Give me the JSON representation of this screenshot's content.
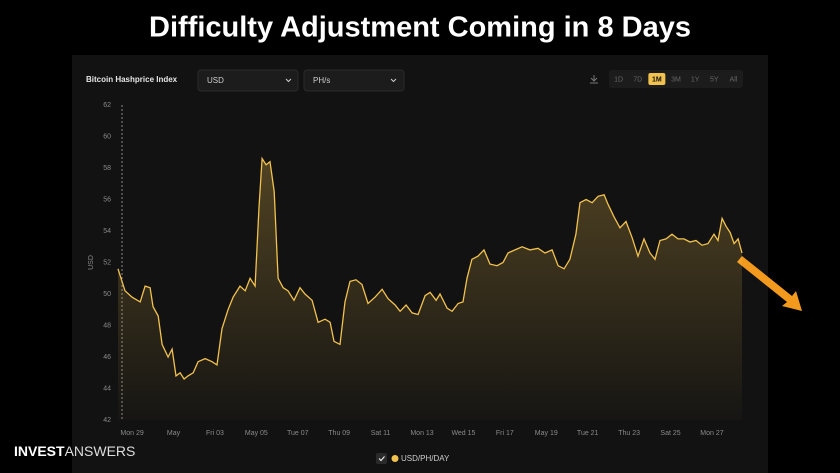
{
  "title": "Difficulty Adjustment Coming in 8 Days",
  "brand": {
    "bold": "INVEST",
    "light": "ANSWERS"
  },
  "controls": {
    "index_name": "Bitcoin Hashprice Index",
    "currency": "USD",
    "unit": "PH/s",
    "ranges": [
      "1D",
      "7D",
      "1M",
      "3M",
      "1Y",
      "5Y",
      "All"
    ],
    "active_range": "1M"
  },
  "chart_data": {
    "type": "area",
    "ylabel": "USD",
    "xlim": [
      -0.68,
      29.45
    ],
    "ylim": [
      42,
      62
    ],
    "yticks": [
      42,
      44,
      46,
      48,
      50,
      52,
      54,
      56,
      58,
      60,
      62
    ],
    "xticks": [
      {
        "value": 0,
        "label": "Mon 29"
      },
      {
        "value": 2,
        "label": "May"
      },
      {
        "value": 4,
        "label": "Fri 03"
      },
      {
        "value": 6,
        "label": "May 05"
      },
      {
        "value": 8,
        "label": "Tue 07"
      },
      {
        "value": 10,
        "label": "Thu 09"
      },
      {
        "value": 12,
        "label": "Sat 11"
      },
      {
        "value": 14,
        "label": "Mon 13"
      },
      {
        "value": 16,
        "label": "Wed 15"
      },
      {
        "value": 18,
        "label": "Fri 17"
      },
      {
        "value": 20,
        "label": "May 19"
      },
      {
        "value": 22,
        "label": "Tue 21"
      },
      {
        "value": 24,
        "label": "Thu 23"
      },
      {
        "value": 26,
        "label": "Sat 25"
      },
      {
        "value": 28,
        "label": "Mon 27"
      }
    ],
    "series": [
      {
        "name": "USD/PH/DAY",
        "color": "#f2c14e",
        "x": [
          -0.68,
          -0.34,
          0,
          0.39,
          0.63,
          0.87,
          1.01,
          1.26,
          1.45,
          1.74,
          1.93,
          2.12,
          2.32,
          2.51,
          2.7,
          2.95,
          3.19,
          3.53,
          3.86,
          4.1,
          4.34,
          4.63,
          4.88,
          5.21,
          5.46,
          5.7,
          5.94,
          6.13,
          6.28,
          6.47,
          6.66,
          6.86,
          7.05,
          7.29,
          7.53,
          7.82,
          8.11,
          8.35,
          8.69,
          8.98,
          9.32,
          9.56,
          9.75,
          10.04,
          10.28,
          10.52,
          10.81,
          11.1,
          11.39,
          11.73,
          12.07,
          12.36,
          12.7,
          12.94,
          13.23,
          13.52,
          13.81,
          14.15,
          14.39,
          14.68,
          14.87,
          15.21,
          15.45,
          15.74,
          15.98,
          16.17,
          16.41,
          16.7,
          16.99,
          17.28,
          17.62,
          17.91,
          18.15,
          18.49,
          18.83,
          19.21,
          19.6,
          19.94,
          20.28,
          20.57,
          20.86,
          21.14,
          21.43,
          21.63,
          21.92,
          22.21,
          22.5,
          22.79,
          22.98,
          23.27,
          23.56,
          23.85,
          24.14,
          24.43,
          24.72,
          25.01,
          25.25,
          25.49,
          25.78,
          26.07,
          26.36,
          26.65,
          26.94,
          27.23,
          27.52,
          27.81,
          28.1,
          28.29,
          28.49,
          28.68,
          28.88,
          29.07,
          29.26,
          29.45
        ],
        "values": [
          51.6,
          50.2,
          49.8,
          49.5,
          50.5,
          50.4,
          49.2,
          48.6,
          46.8,
          46.0,
          46.5,
          44.8,
          45.0,
          44.6,
          44.8,
          45.0,
          45.7,
          45.9,
          45.7,
          45.5,
          47.8,
          49.0,
          49.8,
          50.5,
          50.2,
          51.0,
          50.5,
          55.5,
          58.6,
          58.2,
          58.4,
          56.5,
          51.0,
          50.4,
          50.2,
          49.6,
          50.4,
          50.0,
          49.6,
          48.2,
          48.4,
          48.2,
          47.0,
          46.8,
          49.5,
          50.8,
          50.9,
          50.6,
          49.4,
          49.8,
          50.3,
          49.7,
          49.3,
          48.9,
          49.3,
          48.8,
          48.7,
          49.9,
          50.1,
          49.6,
          50.0,
          49.1,
          48.9,
          49.4,
          49.5,
          51.0,
          52.2,
          52.4,
          52.8,
          51.9,
          51.8,
          52.0,
          52.6,
          52.8,
          53.0,
          52.8,
          52.9,
          52.6,
          52.8,
          51.8,
          51.6,
          52.2,
          53.8,
          55.8,
          56.0,
          55.8,
          56.2,
          56.3,
          55.7,
          54.9,
          54.2,
          54.6,
          53.6,
          52.4,
          53.5,
          52.6,
          52.2,
          53.4,
          53.5,
          53.8,
          53.5,
          53.5,
          53.3,
          53.4,
          53.1,
          53.2,
          53.8,
          53.4,
          54.8,
          54.3,
          53.9,
          53.2,
          53.5,
          52.6
        ]
      }
    ]
  }
}
